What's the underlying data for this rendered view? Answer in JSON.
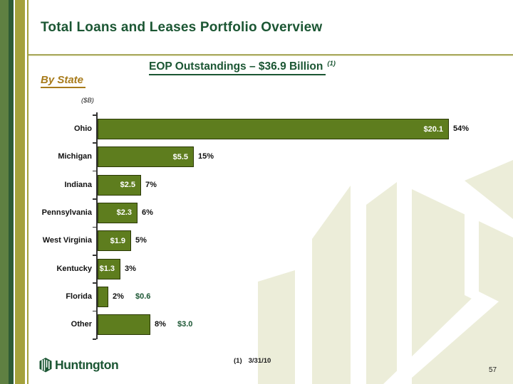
{
  "slide": {
    "title": "Total Loans and Leases Portfolio Overview",
    "page_number": "57"
  },
  "subtitle": {
    "text": "EOP Outstandings – $36.9 Billion",
    "footnote_ref": "(1)"
  },
  "section_label": "By State",
  "chart_data": {
    "type": "bar",
    "orientation": "horizontal",
    "title": "EOP Outstandings – $36.9 Billion",
    "units_label": "($B)",
    "xlabel": "",
    "ylabel": "",
    "xlim": [
      0,
      20.1
    ],
    "categories": [
      "Ohio",
      "Michigan",
      "Indiana",
      "Pennsylvania",
      "West Virginia",
      "Kentucky",
      "Florida",
      "Other"
    ],
    "values": [
      20.1,
      5.5,
      2.5,
      2.3,
      1.9,
      1.3,
      0.6,
      3.0
    ],
    "value_labels": [
      "$20.1",
      "$5.5",
      "$2.5",
      "$2.3",
      "$1.9",
      "$1.3",
      "$0.6",
      "$3.0"
    ],
    "pct_labels": [
      "54%",
      "15%",
      "7%",
      "6%",
      "5%",
      "3%",
      "2%",
      "8%"
    ],
    "value_label_position": [
      "inside",
      "inside",
      "inside",
      "inside",
      "inside",
      "inside",
      "outside",
      "outside"
    ],
    "bar_color": "#5e7d1e",
    "grid": false,
    "legend": false
  },
  "footer": {
    "logo_text": "Huntıngton",
    "footnote_marker": "(1)",
    "footnote_date": "3/31/10"
  },
  "colors": {
    "title_green": "#1b5633",
    "bar_green": "#5e7d1e",
    "section_gold": "#a87b1b",
    "watermark_beige": "#ecedd9",
    "stripe_medium_green": "#5f8042",
    "stripe_dark_green": "#2e5b35",
    "stripe_olive": "#a4a13c"
  }
}
